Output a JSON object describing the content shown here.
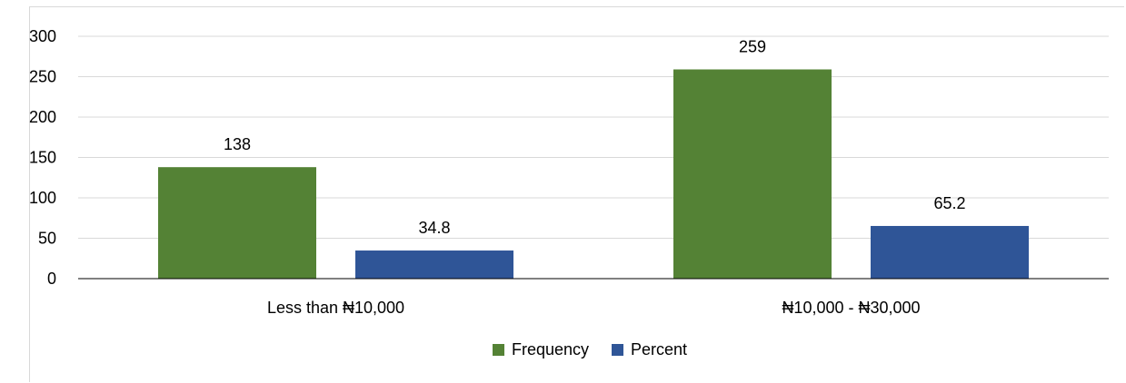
{
  "chart_data": {
    "type": "bar",
    "categories": [
      "Less than ₦10,000",
      "₦10,000 - ₦30,000"
    ],
    "series": [
      {
        "name": "Frequency",
        "values": [
          138,
          259
        ],
        "color": "#548235"
      },
      {
        "name": "Percent",
        "values": [
          34.8,
          65.2
        ],
        "color": "#2f5597"
      }
    ],
    "ylim": [
      0,
      300
    ],
    "yticks": [
      0,
      50,
      100,
      150,
      200,
      250,
      300
    ],
    "grid": true,
    "legend_position": "bottom",
    "data_labels": true
  }
}
